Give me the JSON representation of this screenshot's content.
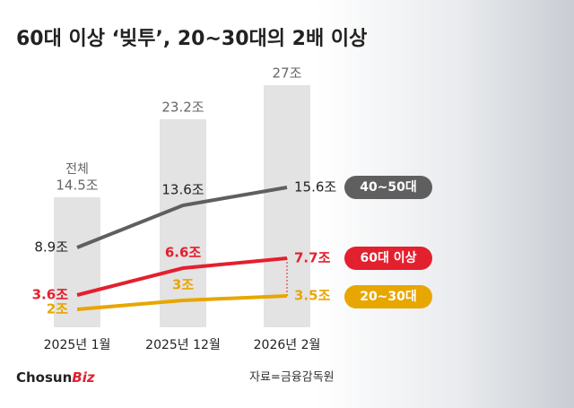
{
  "chart_data": {
    "type": "combo",
    "title": "60대 이상 ‘빚투’, 20~30대의 2배 이상",
    "categories": [
      "2025년 1월",
      "2025년 12월",
      "2026년 2월"
    ],
    "bars": {
      "name": "전체",
      "color": "#e3e3e3",
      "values": [
        14.5,
        23.2,
        27
      ],
      "value_labels": [
        "14.5조",
        "23.2조",
        "27조"
      ]
    },
    "series": [
      {
        "name": "40~50대",
        "color": "#5f5f5f",
        "values": [
          8.9,
          13.6,
          15.6
        ],
        "value_labels": [
          "8.9조",
          "13.6조",
          "15.6조"
        ]
      },
      {
        "name": "60대 이상",
        "color": "#e3202e",
        "values": [
          3.6,
          6.6,
          7.7
        ],
        "value_labels": [
          "3.6조",
          "6.6조",
          "7.7조"
        ]
      },
      {
        "name": "20~30대",
        "color": "#e8a600",
        "values": [
          2,
          3,
          3.5
        ],
        "value_labels": [
          "2조",
          "3조",
          "3.5조"
        ]
      }
    ],
    "source": "자료=금융감독원"
  },
  "logo": {
    "main": "Chosun",
    "accent": "Biz"
  }
}
